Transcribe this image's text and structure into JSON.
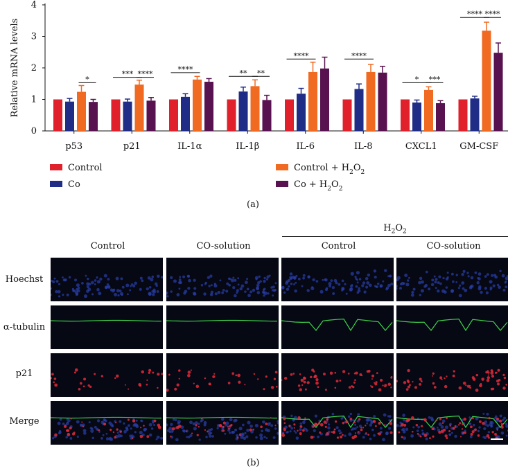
{
  "chart_data": {
    "type": "bar",
    "ylabel": "Relative mRNA levels",
    "ylim": [
      0,
      4
    ],
    "yticks": [
      "0",
      "1",
      "2",
      "3",
      "4"
    ],
    "categories": [
      "p53",
      "p21",
      "IL-1α",
      "IL-1β",
      "IL-6",
      "IL-8",
      "CXCL1",
      "GM-CSF"
    ],
    "series": [
      {
        "name": "Control",
        "color": "#e0202a",
        "values": [
          1.0,
          1.0,
          1.0,
          1.0,
          1.0,
          1.0,
          1.0,
          1.0
        ],
        "errors": [
          0,
          0,
          0,
          0,
          0,
          0,
          0,
          0
        ]
      },
      {
        "name": "Co",
        "color": "#1f2d86",
        "values": [
          0.93,
          0.93,
          1.08,
          1.25,
          1.18,
          1.33,
          0.9,
          1.03
        ],
        "errors": [
          0.1,
          0.08,
          0.1,
          0.14,
          0.17,
          0.16,
          0.08,
          0.07
        ]
      },
      {
        "name": "Control + H2O2",
        "color": "#f06a22",
        "values": [
          1.24,
          1.47,
          1.63,
          1.42,
          1.87,
          1.87,
          1.3,
          3.18
        ],
        "errors": [
          0.2,
          0.14,
          0.1,
          0.2,
          0.31,
          0.24,
          0.1,
          0.27
        ]
      },
      {
        "name": "Co + H2O2",
        "color": "#57124f",
        "values": [
          0.92,
          0.96,
          1.56,
          0.98,
          1.98,
          1.85,
          0.88,
          2.48
        ],
        "errors": [
          0.08,
          0.1,
          0.1,
          0.15,
          0.36,
          0.2,
          0.08,
          0.31
        ]
      }
    ],
    "significance": [
      {
        "category": 0,
        "from": 2,
        "to": 3,
        "label": "*",
        "y": 1.53
      },
      {
        "category": 1,
        "from": 0,
        "to": 2,
        "label": "***",
        "y": 1.7
      },
      {
        "category": 1,
        "from": 2,
        "to": 3,
        "label": "****",
        "y": 1.7
      },
      {
        "category": 2,
        "from": 0,
        "to": 2,
        "label": "****",
        "y": 1.85
      },
      {
        "category": 3,
        "from": 0,
        "to": 2,
        "label": "**",
        "y": 1.73
      },
      {
        "category": 3,
        "from": 2,
        "to": 3,
        "label": "**",
        "y": 1.73
      },
      {
        "category": 4,
        "from": 0,
        "to": 2,
        "label": "****",
        "y": 2.28
      },
      {
        "category": 5,
        "from": 0,
        "to": 2,
        "label": "****",
        "y": 2.28
      },
      {
        "category": 6,
        "from": 0,
        "to": 2,
        "label": "*",
        "y": 1.53
      },
      {
        "category": 6,
        "from": 2,
        "to": 3,
        "label": "***",
        "y": 1.53
      },
      {
        "category": 7,
        "from": 0,
        "to": 2,
        "label": "****",
        "y": 3.6
      },
      {
        "category": 7,
        "from": 2,
        "to": 3,
        "label": "****",
        "y": 3.6
      }
    ],
    "legend": [
      {
        "label": "Control",
        "color": "#e0202a"
      },
      {
        "label": "Co",
        "color": "#1f2d86"
      },
      {
        "label": "Control + H",
        "sub": "2",
        "label2": "O",
        "sub2": "2",
        "color": "#f06a22"
      },
      {
        "label": "Co + H",
        "sub": "2",
        "label2": "O",
        "sub2": "2",
        "color": "#57124f"
      }
    ]
  },
  "panel_a_caption": "(a)",
  "panel_b_caption": "(b)",
  "microscopy": {
    "treatment_header": {
      "base": "H",
      "sub1": "2",
      "mid": "O",
      "sub2": "2"
    },
    "columns": [
      "Control",
      "CO-solution",
      "Control",
      "CO-solution"
    ],
    "rows": [
      "Hoechst",
      "α-tubulin",
      "p21",
      "Merge"
    ]
  }
}
